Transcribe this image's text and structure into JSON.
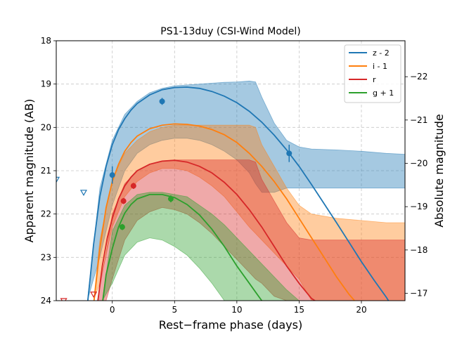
{
  "chart_data": {
    "type": "line",
    "title": "PS1-13duy (CSI-Wind Model)",
    "xlabel": "Rest−frame phase (days)",
    "ylabel": "Apparent magnitude (AB)",
    "ylabel_right": "Absolute magnitude",
    "xlim": [
      -4.5,
      23.5
    ],
    "ylim": [
      24,
      18
    ],
    "ylim_right": [
      -16.83,
      -22.83
    ],
    "x_ticks": [
      0,
      5,
      10,
      15,
      20
    ],
    "x_tick_labels": [
      "0",
      "5",
      "10",
      "15",
      "20"
    ],
    "y_ticks": [
      18,
      19,
      20,
      21,
      22,
      23,
      24
    ],
    "y_tick_labels": [
      "18",
      "19",
      "20",
      "21",
      "22",
      "23",
      "24"
    ],
    "y_right_ticks": [
      -17,
      -18,
      -19,
      -20,
      -21,
      -22
    ],
    "y_right_tick_labels": [
      "−17",
      "−18",
      "−19",
      "−20",
      "−21",
      "−22"
    ],
    "grid": true,
    "legend_position": "top-right",
    "series": [
      {
        "name": "z - 2",
        "color": "#1f77b4",
        "model_x": [
          -2.0,
          -1.5,
          -1.0,
          -0.5,
          0.0,
          0.5,
          1.0,
          1.5,
          2.0,
          3.0,
          4.0,
          5.0,
          6.0,
          7.0,
          8.0,
          9.0,
          10.0,
          11.0,
          12.0,
          13.0,
          14.0,
          15.0,
          16.0,
          17.0,
          18.0,
          19.0,
          20.0,
          21.0,
          22.0,
          22.5
        ],
        "model_y": [
          24.1,
          22.7,
          21.6,
          20.9,
          20.4,
          20.05,
          19.8,
          19.6,
          19.45,
          19.25,
          19.13,
          19.08,
          19.07,
          19.1,
          19.17,
          19.28,
          19.43,
          19.63,
          19.88,
          20.18,
          20.52,
          20.9,
          21.32,
          21.76,
          22.2,
          22.65,
          23.1,
          23.52,
          23.92,
          24.15
        ],
        "band_x": [
          -2.0,
          -1.0,
          0.0,
          1.0,
          2.0,
          3.0,
          4.0,
          5.0,
          6.0,
          7.0,
          8.0,
          9.0,
          10.0,
          11.0,
          11.5,
          12.0,
          13.0,
          14.0,
          15.0,
          16.0,
          18.0,
          20.0,
          22.0,
          23.5
        ],
        "band_upper": [
          24.0,
          21.4,
          20.3,
          19.7,
          19.4,
          19.2,
          19.1,
          19.04,
          19.02,
          19.0,
          18.98,
          18.96,
          18.95,
          18.93,
          18.95,
          19.3,
          19.9,
          20.3,
          20.45,
          20.5,
          20.52,
          20.55,
          20.6,
          20.62
        ],
        "band_lower": [
          24.0,
          23.0,
          21.8,
          21.0,
          20.6,
          20.4,
          20.3,
          20.25,
          20.25,
          20.3,
          20.4,
          20.55,
          20.75,
          21.05,
          21.3,
          21.5,
          21.5,
          21.4,
          21.4,
          21.4,
          21.4,
          21.4,
          21.4,
          21.4
        ],
        "points": [
          {
            "x": 0.0,
            "y": 21.1,
            "err": 0.2
          },
          {
            "x": 4.0,
            "y": 19.4,
            "err": 0.08
          },
          {
            "x": 14.2,
            "y": 20.6,
            "err": 0.2
          }
        ],
        "upper_limits": [
          {
            "x": -4.5,
            "y": 21.2
          },
          {
            "x": -2.3,
            "y": 21.5
          }
        ]
      },
      {
        "name": "i - 1",
        "color": "#ff7f0e",
        "model_x": [
          -1.5,
          -1.0,
          -0.5,
          0.0,
          0.5,
          1.0,
          1.5,
          2.0,
          3.0,
          4.0,
          5.0,
          6.0,
          7.0,
          8.0,
          9.0,
          10.0,
          11.0,
          12.0,
          13.0,
          14.0,
          15.0,
          16.0,
          17.0,
          18.0,
          19.0,
          19.6
        ],
        "model_y": [
          24.1,
          22.8,
          21.85,
          21.25,
          20.85,
          20.55,
          20.35,
          20.2,
          20.03,
          19.95,
          19.92,
          19.93,
          19.97,
          20.05,
          20.17,
          20.35,
          20.6,
          20.9,
          21.25,
          21.65,
          22.1,
          22.55,
          23.0,
          23.45,
          23.85,
          24.05
        ],
        "band_x": [
          -1.5,
          -1.0,
          0.0,
          1.0,
          2.0,
          3.0,
          4.0,
          5.0,
          6.0,
          7.0,
          8.0,
          9.0,
          10.0,
          11.0,
          11.5,
          12.0,
          13.0,
          14.0,
          15.0,
          16.0,
          18.0,
          20.0,
          22.0,
          23.5
        ],
        "band_upper": [
          24.0,
          22.6,
          21.2,
          20.6,
          20.3,
          20.1,
          20.0,
          19.95,
          19.95,
          19.95,
          19.95,
          19.95,
          19.95,
          19.95,
          20.0,
          20.4,
          20.9,
          21.4,
          21.8,
          22.0,
          22.1,
          22.15,
          22.2,
          22.2
        ],
        "band_lower": [
          24.0,
          23.6,
          22.3,
          21.6,
          21.25,
          21.05,
          20.95,
          20.95,
          21.0,
          21.15,
          21.35,
          21.6,
          21.95,
          22.3,
          22.45,
          22.6,
          22.9,
          23.2,
          23.5,
          24.0,
          24.0,
          24.0,
          24.0,
          24.0
        ]
      },
      {
        "name": "r",
        "color": "#d62728",
        "model_x": [
          -1.2,
          -0.8,
          -0.4,
          0.0,
          0.5,
          1.0,
          1.5,
          2.0,
          3.0,
          4.0,
          5.0,
          6.0,
          7.0,
          8.0,
          9.0,
          10.0,
          11.0,
          12.0,
          13.0,
          14.0,
          15.0,
          16.0,
          16.8
        ],
        "model_y": [
          24.1,
          23.2,
          22.55,
          22.1,
          21.65,
          21.35,
          21.15,
          21.0,
          20.85,
          20.78,
          20.76,
          20.8,
          20.9,
          21.05,
          21.27,
          21.55,
          21.9,
          22.3,
          22.75,
          23.2,
          23.6,
          23.95,
          24.1
        ],
        "band_x": [
          -1.2,
          -0.5,
          0.0,
          1.0,
          2.0,
          3.0,
          4.0,
          5.0,
          6.0,
          7.0,
          8.0,
          9.0,
          10.0,
          11.0,
          11.5,
          12.0,
          13.0,
          14.0,
          15.0,
          16.0,
          18.0,
          20.0,
          22.0,
          23.5
        ],
        "band_upper": [
          24.0,
          22.9,
          22.0,
          21.3,
          21.0,
          20.85,
          20.78,
          20.75,
          20.75,
          20.75,
          20.75,
          20.75,
          20.75,
          20.75,
          20.8,
          21.2,
          21.7,
          22.2,
          22.55,
          22.6,
          22.6,
          22.6,
          22.6,
          22.6
        ],
        "band_lower": [
          24.0,
          24.0,
          23.5,
          22.6,
          22.15,
          21.95,
          21.85,
          21.9,
          22.0,
          22.2,
          22.45,
          22.75,
          23.05,
          23.35,
          23.5,
          23.6,
          23.9,
          24.0,
          24.0,
          24.0,
          24.0,
          24.0,
          24.0,
          24.0
        ],
        "points": [
          {
            "x": 0.9,
            "y": 21.7,
            "err": 0.07
          },
          {
            "x": 1.7,
            "y": 21.35,
            "err": 0.07
          }
        ],
        "upper_limits": [
          {
            "x": -3.9,
            "y": 24.0
          },
          {
            "x": -1.5,
            "y": 23.85
          }
        ]
      },
      {
        "name": "g + 1",
        "color": "#2ca02c",
        "model_x": [
          -0.8,
          -0.5,
          0.0,
          0.5,
          1.0,
          1.5,
          2.0,
          3.0,
          4.0,
          5.0,
          6.0,
          7.0,
          8.0,
          9.0,
          10.0,
          11.0,
          11.5,
          12.0,
          12.3
        ],
        "model_y": [
          24.1,
          23.4,
          22.8,
          22.3,
          21.98,
          21.78,
          21.65,
          21.55,
          21.55,
          21.62,
          21.78,
          22.02,
          22.35,
          22.75,
          23.2,
          23.6,
          23.8,
          24.0,
          24.1
        ],
        "band_x": [
          -0.8,
          0.0,
          1.0,
          2.0,
          3.0,
          4.0,
          5.0,
          6.0,
          7.0,
          8.0,
          9.0,
          10.0,
          11.0,
          12.0,
          13.0,
          14.0,
          15.0,
          15.5
        ],
        "band_upper": [
          24.0,
          22.4,
          21.8,
          21.55,
          21.5,
          21.5,
          21.55,
          21.6,
          21.8,
          22.0,
          22.25,
          22.55,
          22.85,
          23.15,
          23.45,
          23.75,
          24.0,
          24.0
        ],
        "band_lower": [
          24.0,
          23.6,
          22.95,
          22.65,
          22.55,
          22.6,
          22.75,
          22.95,
          23.25,
          23.6,
          24.0,
          24.0,
          24.0,
          24.0,
          24.0,
          24.0,
          24.0,
          24.0
        ],
        "points": [
          {
            "x": 0.8,
            "y": 22.3,
            "err": 0.07
          },
          {
            "x": 4.7,
            "y": 21.65,
            "err": 0.08
          }
        ]
      }
    ]
  }
}
